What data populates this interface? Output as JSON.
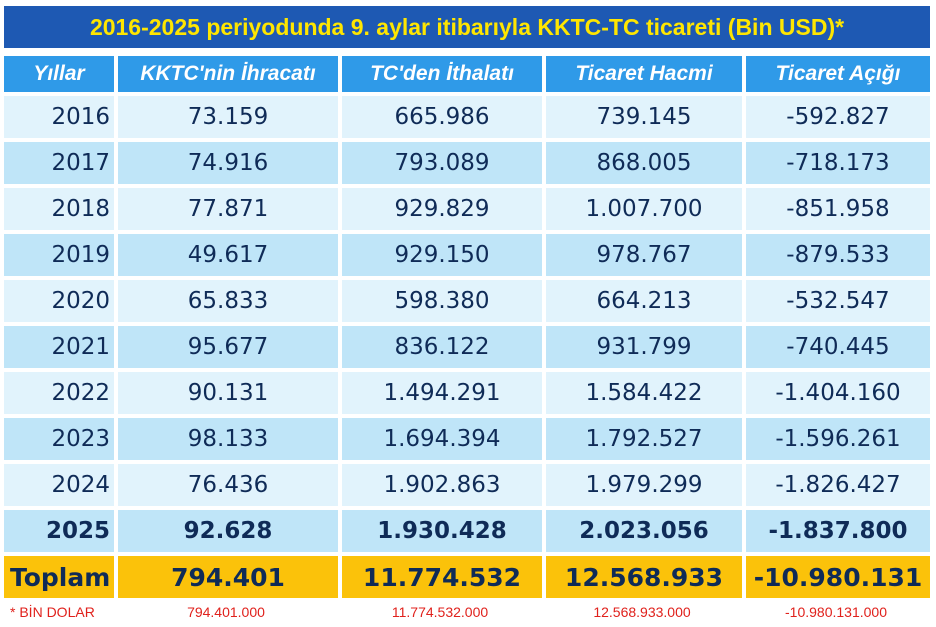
{
  "title": "2016-2025 periyodunda 9. aylar itibarıyla KKTC-TC ticareti (Bin USD)*",
  "headers": [
    "Yıllar",
    "KKTC'nin İhracatı",
    "TC'den İthalatı",
    "Ticaret Hacmi",
    "Ticaret Açığı"
  ],
  "rows": [
    [
      "2016",
      "73.159",
      "665.986",
      "739.145",
      "-592.827"
    ],
    [
      "2017",
      "74.916",
      "793.089",
      "868.005",
      "-718.173"
    ],
    [
      "2018",
      "77.871",
      "929.829",
      "1.007.700",
      "-851.958"
    ],
    [
      "2019",
      "49.617",
      "929.150",
      "978.767",
      "-879.533"
    ],
    [
      "2020",
      "65.833",
      "598.380",
      "664.213",
      "-532.547"
    ],
    [
      "2021",
      "95.677",
      "836.122",
      "931.799",
      "-740.445"
    ],
    [
      "2022",
      "90.131",
      "1.494.291",
      "1.584.422",
      "-1.404.160"
    ],
    [
      "2023",
      "98.133",
      "1.694.394",
      "1.792.527",
      "-1.596.261"
    ],
    [
      "2024",
      "76.436",
      "1.902.863",
      "1.979.299",
      "-1.826.427"
    ],
    [
      "2025",
      "92.628",
      "1.930.428",
      "2.023.056",
      "-1.837.800"
    ]
  ],
  "total": [
    "Toplam",
    "794.401",
    "11.774.532",
    "12.568.933",
    "-10.980.131"
  ],
  "footnote": [
    "* BİN DOLAR",
    "794.401.000",
    "11.774.532.000",
    "12.568.933.000",
    "-10.980.131.000"
  ],
  "colors": {
    "title_bg": "#1e59b3",
    "title_text": "#ffe600",
    "header_bg": "#2f9ae8",
    "row_light": "#e1f3fc",
    "row_dark": "#bfe5f8",
    "total_bg": "#fbc20a",
    "footnote_text": "#e0211c"
  }
}
